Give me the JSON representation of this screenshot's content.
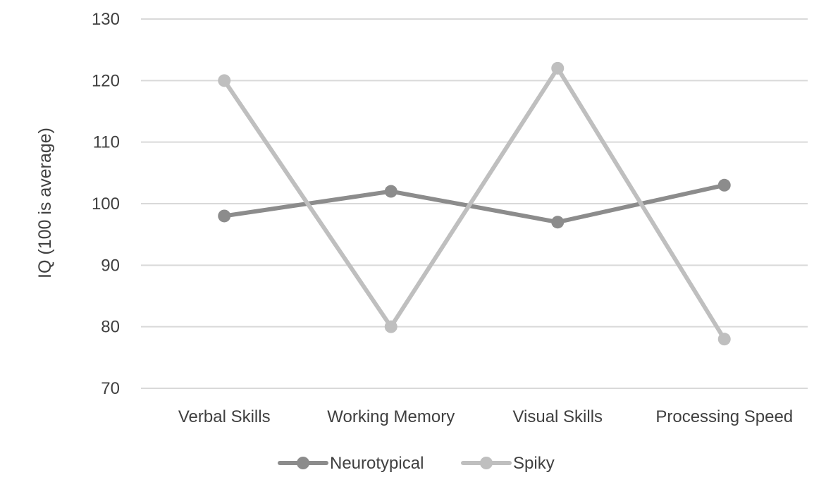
{
  "chart_data": {
    "type": "line",
    "title": "",
    "xlabel": "",
    "ylabel": "IQ (100 is average)",
    "categories": [
      "Verbal Skills",
      "Working Memory",
      "Visual Skills",
      "Processing Speed"
    ],
    "ylim": [
      70,
      130
    ],
    "yticks": [
      70,
      80,
      90,
      100,
      110,
      120,
      130
    ],
    "grid": true,
    "legend_position": "bottom",
    "series": [
      {
        "name": "Neurotypical",
        "values": [
          98,
          102,
          97,
          103
        ],
        "color": "#8c8c8c"
      },
      {
        "name": "Spiky",
        "values": [
          120,
          80,
          122,
          78
        ],
        "color": "#bfbfbf"
      }
    ]
  }
}
